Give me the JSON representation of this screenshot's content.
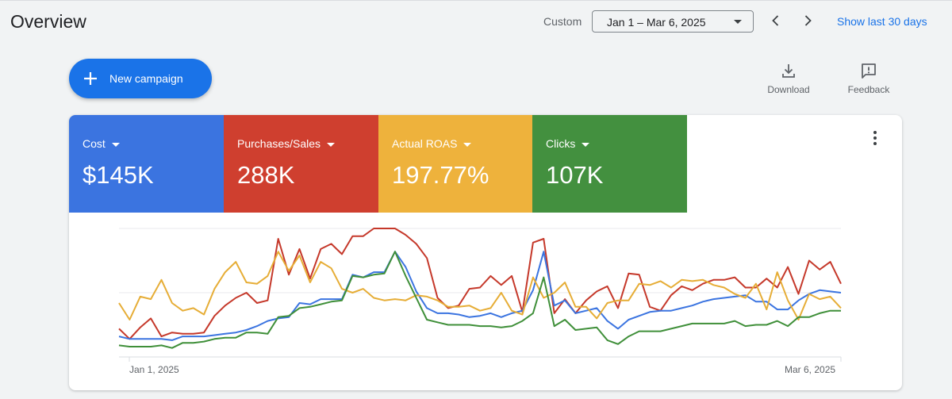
{
  "header": {
    "title": "Overview",
    "custom_label": "Custom",
    "date_range": "Jan 1 – Mar 6, 2025",
    "show_last": "Show last 30 days"
  },
  "toolbar": {
    "new_campaign_label": "New campaign",
    "download_label": "Download",
    "feedback_label": "Feedback"
  },
  "metrics": [
    {
      "label": "Cost",
      "value": "$145K",
      "color": "#3b74e0"
    },
    {
      "label": "Purchases/Sales",
      "value": "288K",
      "color": "#cf3f2f"
    },
    {
      "label": "Actual ROAS",
      "value": "197.77%",
      "color": "#eeb23c"
    },
    {
      "label": "Clicks",
      "value": "107K",
      "color": "#43903f"
    }
  ],
  "chart_data": {
    "type": "line",
    "x_start_label": "Jan 1, 2025",
    "x_end_label": "Mar 6, 2025",
    "grid": true,
    "y_tick_labels_shown": false,
    "series": [
      {
        "metric": "Purchases/Sales",
        "color": "#c5382a",
        "values": [
          22,
          14,
          23,
          30,
          16,
          19,
          18,
          18,
          19,
          32,
          40,
          46,
          50,
          42,
          44,
          92,
          64,
          84,
          61,
          84,
          88,
          80,
          94,
          94,
          100,
          100,
          100,
          95,
          88,
          77,
          46,
          38,
          40,
          53,
          54,
          63,
          56,
          63,
          35,
          89,
          92,
          34,
          45,
          34,
          44,
          51,
          55,
          38,
          65,
          64,
          39,
          36,
          48,
          55,
          52,
          57,
          60,
          60,
          62,
          54,
          54,
          61,
          54,
          70,
          49,
          75,
          68,
          74,
          57
        ]
      },
      {
        "metric": "Cost",
        "color": "#3b74e0",
        "values": [
          16,
          14,
          14,
          14,
          14,
          13,
          16,
          16,
          16,
          17,
          18,
          19,
          21,
          24,
          28,
          30,
          31,
          42,
          41,
          45,
          45,
          45,
          64,
          62,
          66,
          66,
          82,
          70,
          51,
          38,
          34,
          34,
          33,
          31,
          32,
          34,
          31,
          34,
          36,
          52,
          82,
          40,
          44,
          34,
          36,
          38,
          28,
          22,
          29,
          32,
          35,
          36,
          36,
          38,
          40,
          43,
          45,
          46,
          47,
          48,
          43,
          43,
          37,
          37,
          44,
          49,
          52,
          51,
          50
        ]
      },
      {
        "metric": "Actual ROAS",
        "color": "#e6ad36",
        "values": [
          42,
          29,
          47,
          45,
          60,
          42,
          36,
          38,
          33,
          53,
          66,
          74,
          58,
          57,
          63,
          82,
          67,
          79,
          58,
          74,
          69,
          53,
          50,
          53,
          46,
          44,
          45,
          44,
          48,
          47,
          44,
          39,
          39,
          40,
          36,
          38,
          50,
          36,
          33,
          62,
          46,
          50,
          58,
          39,
          39,
          30,
          42,
          44,
          44,
          57,
          56,
          59,
          54,
          60,
          59,
          60,
          56,
          54,
          49,
          46,
          57,
          37,
          66,
          44,
          29,
          49,
          45,
          47,
          38
        ]
      },
      {
        "metric": "Clicks",
        "color": "#3f8f39",
        "values": [
          9,
          8,
          8,
          8,
          9,
          7,
          11,
          11,
          12,
          14,
          15,
          15,
          19,
          19,
          18,
          31,
          32,
          38,
          39,
          41,
          43,
          44,
          63,
          62,
          64,
          65,
          82,
          63,
          46,
          29,
          27,
          25,
          25,
          25,
          24,
          24,
          23,
          24,
          28,
          34,
          62,
          24,
          29,
          21,
          22,
          23,
          13,
          10,
          16,
          20,
          20,
          20,
          22,
          24,
          26,
          26,
          26,
          26,
          28,
          24,
          25,
          25,
          28,
          24,
          31,
          31,
          34,
          36,
          36
        ]
      }
    ]
  }
}
